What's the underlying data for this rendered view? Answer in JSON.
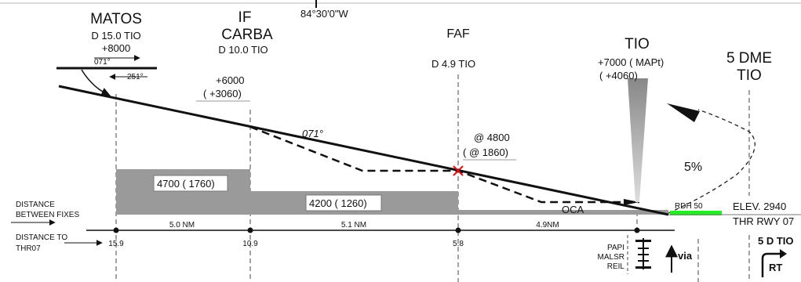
{
  "top": {
    "coord": "84°30'0\"W"
  },
  "fixes": {
    "matos": {
      "name": "MATOS",
      "dme": "D 15.0 TIO",
      "alt": "+8000",
      "hold_in": "071°",
      "hold_out": "251°"
    },
    "carba": {
      "name_line1": "IF",
      "name_line2": "CARBA",
      "dme": "D 10.0 TIO",
      "alt1": "+6000",
      "alt2": "(  +3060)"
    },
    "faf": {
      "name": "FAF",
      "dme": "D 4.9 TIO",
      "alt1": "@  4800",
      "alt2": "(  @ 1860)"
    },
    "tio": {
      "name": "TIO",
      "alt1": "+7000 (  MAPt)",
      "alt2": "(  +4060)"
    },
    "dme5": {
      "line1": "5 DME",
      "line2": "TIO"
    }
  },
  "course": "071°",
  "climb_gradient": "5%",
  "segments": {
    "seg1": "4700 (  1760)",
    "seg2": "4200 (  1260)",
    "oca": "OCA"
  },
  "runway": {
    "rdh": "RDH 50",
    "elev": "ELEV. 2940",
    "thr": "THR RWY 07"
  },
  "distance_between": {
    "label1": "DISTANCE",
    "label2": "BETWEEN FIXES",
    "values": [
      "5.0 NM",
      "5.1 NM",
      "4.9NM"
    ]
  },
  "distance_to": {
    "label1": "DISTANCE TO",
    "label2": "THR07",
    "values": [
      "15.9",
      "10.9",
      "5.8"
    ]
  },
  "lights": {
    "papi": "PAPI",
    "malsr": "MALSR",
    "reil": "REIL",
    "via": "via"
  },
  "turn": {
    "label": "5 D TIO",
    "dir": "RT"
  },
  "colors": {
    "accent_green": "#22ee22",
    "shade": "#999999",
    "faf_marker": "#dd1111"
  }
}
